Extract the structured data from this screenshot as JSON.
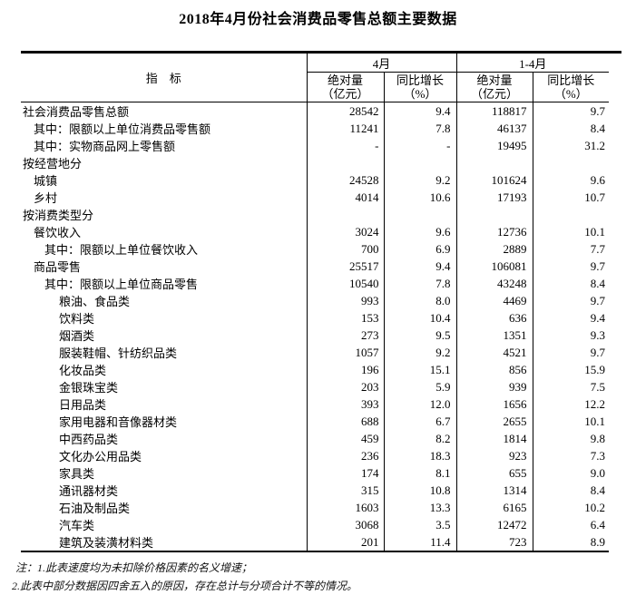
{
  "page": {
    "background": "#ffffff",
    "text_color": "#000000",
    "border_color": "#000000"
  },
  "title": "2018年4月份社会消费品零售总额主要数据",
  "table": {
    "header": {
      "indicator": "指　标",
      "april": "4月",
      "jan_apr": "1-4月",
      "absolute": "绝对量\n（亿元）",
      "growth": "同比增长\n（%）"
    },
    "rows": [
      {
        "label": "社会消费品零售总额",
        "indent": 0,
        "april_abs": "28542",
        "april_growth": "9.4",
        "ytd_abs": "118817",
        "ytd_growth": "9.7"
      },
      {
        "label": "其中：限额以上单位消费品零售额",
        "indent": 1,
        "april_abs": "11241",
        "april_growth": "7.8",
        "ytd_abs": "46137",
        "ytd_growth": "8.4"
      },
      {
        "label": "其中：实物商品网上零售额",
        "indent": 1,
        "april_abs": "-",
        "april_growth": "-",
        "ytd_abs": "19495",
        "ytd_growth": "31.2"
      },
      {
        "label": "按经营地分",
        "indent": 0,
        "april_abs": "",
        "april_growth": "",
        "ytd_abs": "",
        "ytd_growth": ""
      },
      {
        "label": "城镇",
        "indent": 1,
        "april_abs": "24528",
        "april_growth": "9.2",
        "ytd_abs": "101624",
        "ytd_growth": "9.6"
      },
      {
        "label": "乡村",
        "indent": 1,
        "april_abs": "4014",
        "april_growth": "10.6",
        "ytd_abs": "17193",
        "ytd_growth": "10.7"
      },
      {
        "label": "按消费类型分",
        "indent": 0,
        "april_abs": "",
        "april_growth": "",
        "ytd_abs": "",
        "ytd_growth": ""
      },
      {
        "label": "餐饮收入",
        "indent": 1,
        "april_abs": "3024",
        "april_growth": "9.6",
        "ytd_abs": "12736",
        "ytd_growth": "10.1"
      },
      {
        "label": "其中：限额以上单位餐饮收入",
        "indent": 2,
        "april_abs": "700",
        "april_growth": "6.9",
        "ytd_abs": "2889",
        "ytd_growth": "7.7"
      },
      {
        "label": "商品零售",
        "indent": 1,
        "april_abs": "25517",
        "april_growth": "9.4",
        "ytd_abs": "106081",
        "ytd_growth": "9.7"
      },
      {
        "label": "其中：限额以上单位商品零售",
        "indent": 2,
        "april_abs": "10540",
        "april_growth": "7.8",
        "ytd_abs": "43248",
        "ytd_growth": "8.4"
      },
      {
        "label": "粮油、食品类",
        "indent": 3,
        "april_abs": "993",
        "april_growth": "8.0",
        "ytd_abs": "4469",
        "ytd_growth": "9.7"
      },
      {
        "label": "饮料类",
        "indent": 3,
        "april_abs": "153",
        "april_growth": "10.4",
        "ytd_abs": "636",
        "ytd_growth": "9.4"
      },
      {
        "label": "烟酒类",
        "indent": 3,
        "april_abs": "273",
        "april_growth": "9.5",
        "ytd_abs": "1351",
        "ytd_growth": "9.3"
      },
      {
        "label": "服装鞋帽、针纺织品类",
        "indent": 3,
        "april_abs": "1057",
        "april_growth": "9.2",
        "ytd_abs": "4521",
        "ytd_growth": "9.7"
      },
      {
        "label": "化妆品类",
        "indent": 3,
        "april_abs": "196",
        "april_growth": "15.1",
        "ytd_abs": "856",
        "ytd_growth": "15.9"
      },
      {
        "label": "金银珠宝类",
        "indent": 3,
        "april_abs": "203",
        "april_growth": "5.9",
        "ytd_abs": "939",
        "ytd_growth": "7.5"
      },
      {
        "label": "日用品类",
        "indent": 3,
        "april_abs": "393",
        "april_growth": "12.0",
        "ytd_abs": "1656",
        "ytd_growth": "12.2"
      },
      {
        "label": "家用电器和音像器材类",
        "indent": 3,
        "april_abs": "688",
        "april_growth": "6.7",
        "ytd_abs": "2655",
        "ytd_growth": "10.1"
      },
      {
        "label": "中西药品类",
        "indent": 3,
        "april_abs": "459",
        "april_growth": "8.2",
        "ytd_abs": "1814",
        "ytd_growth": "9.8"
      },
      {
        "label": "文化办公用品类",
        "indent": 3,
        "april_abs": "236",
        "april_growth": "18.3",
        "ytd_abs": "923",
        "ytd_growth": "7.3"
      },
      {
        "label": "家具类",
        "indent": 3,
        "april_abs": "174",
        "april_growth": "8.1",
        "ytd_abs": "655",
        "ytd_growth": "9.0"
      },
      {
        "label": "通讯器材类",
        "indent": 3,
        "april_abs": "315",
        "april_growth": "10.8",
        "ytd_abs": "1314",
        "ytd_growth": "8.4"
      },
      {
        "label": "石油及制品类",
        "indent": 3,
        "april_abs": "1603",
        "april_growth": "13.3",
        "ytd_abs": "6165",
        "ytd_growth": "10.2"
      },
      {
        "label": "汽车类",
        "indent": 3,
        "april_abs": "3068",
        "april_growth": "3.5",
        "ytd_abs": "12472",
        "ytd_growth": "6.4"
      },
      {
        "label": "建筑及装潢材料类",
        "indent": 3,
        "april_abs": "201",
        "april_growth": "11.4",
        "ytd_abs": "723",
        "ytd_growth": "8.9"
      }
    ]
  },
  "notes": {
    "line1": "注：1.此表速度均为未扣除价格因素的名义增速；",
    "line2": "2.此表中部分数据因四舍五入的原因，存在总计与分项合计不等的情况。"
  }
}
